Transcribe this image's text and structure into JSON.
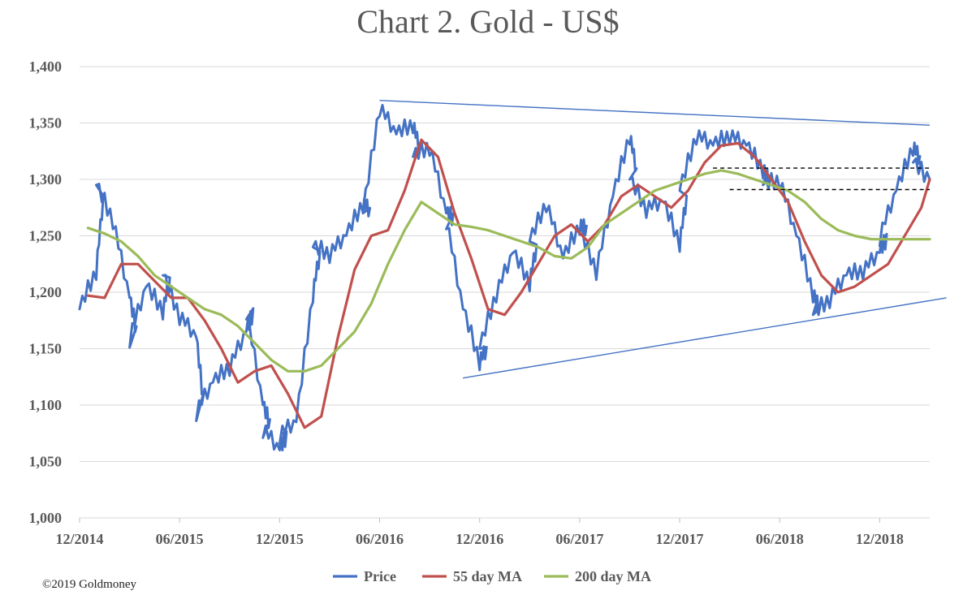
{
  "copyright": "©2019 Goldmoney",
  "chart_data": {
    "type": "line",
    "title": "Chart 2. Gold - US$",
    "xlabel": "",
    "ylabel": "",
    "ylim": [
      1000,
      1400
    ],
    "y_ticks": [
      1000,
      1050,
      1100,
      1150,
      1200,
      1250,
      1300,
      1350,
      1400
    ],
    "y_tick_labels": [
      "1,000",
      "1,050",
      "1,100",
      "1,150",
      "1,200",
      "1,250",
      "1,300",
      "1,350",
      "1,400"
    ],
    "x_range": [
      "2014-12",
      "2019-03"
    ],
    "x_ticks": [
      "2014-12",
      "2015-06",
      "2015-12",
      "2016-06",
      "2016-12",
      "2017-06",
      "2017-12",
      "2018-06",
      "2018-12"
    ],
    "x_tick_labels": [
      "12/2014",
      "06/2015",
      "12/2015",
      "06/2016",
      "12/2016",
      "06/2017",
      "12/2017",
      "06/2018",
      "12/2018"
    ],
    "grid": "horizontal",
    "legend_position": "bottom",
    "series": [
      {
        "name": "Price",
        "color": "#4472C4",
        "x": [
          "2014-12",
          "2015-01",
          "2015-01",
          "2015-02",
          "2015-03",
          "2015-03",
          "2015-04",
          "2015-05",
          "2015-05",
          "2015-06",
          "2015-07",
          "2015-07",
          "2015-08",
          "2015-09",
          "2015-10",
          "2015-10",
          "2015-11",
          "2015-11",
          "2015-12",
          "2015-12",
          "2016-01",
          "2016-02",
          "2016-02",
          "2016-03",
          "2016-04",
          "2016-05",
          "2016-05",
          "2016-06",
          "2016-07",
          "2016-08",
          "2016-08",
          "2016-09",
          "2016-10",
          "2016-10",
          "2016-11",
          "2016-12",
          "2016-12",
          "2017-01",
          "2017-02",
          "2017-03",
          "2017-03",
          "2017-04",
          "2017-05",
          "2017-06",
          "2017-06",
          "2017-07",
          "2017-08",
          "2017-09",
          "2017-09",
          "2017-10",
          "2017-11",
          "2017-12",
          "2017-12",
          "2018-01",
          "2018-02",
          "2018-03",
          "2018-04",
          "2018-05",
          "2018-05",
          "2018-06",
          "2018-07",
          "2018-08",
          "2018-08",
          "2018-09",
          "2018-10",
          "2018-11",
          "2018-12",
          "2018-12",
          "2019-01",
          "2019-02",
          "2019-02",
          "2019-03"
        ],
        "y": [
          1185,
          1220,
          1295,
          1265,
          1195,
          1160,
          1205,
          1185,
          1215,
          1180,
          1160,
          1095,
          1120,
          1135,
          1165,
          1185,
          1100,
          1080,
          1060,
          1075,
          1085,
          1200,
          1240,
          1235,
          1250,
          1280,
          1270,
          1365,
          1340,
          1350,
          1320,
          1330,
          1270,
          1265,
          1185,
          1140,
          1150,
          1200,
          1235,
          1210,
          1245,
          1280,
          1230,
          1260,
          1255,
          1220,
          1285,
          1340,
          1300,
          1275,
          1280,
          1245,
          1290,
          1340,
          1330,
          1340,
          1330,
          1310,
          1295,
          1300,
          1250,
          1200,
          1180,
          1195,
          1215,
          1220,
          1235,
          1250,
          1290,
          1330,
          1315,
          1300
        ]
      },
      {
        "name": "55 day MA",
        "color": "#C0504D",
        "x": [
          "2014-12",
          "2015-01",
          "2015-02",
          "2015-03",
          "2015-04",
          "2015-05",
          "2015-06",
          "2015-07",
          "2015-08",
          "2015-09",
          "2015-10",
          "2015-11",
          "2015-12",
          "2016-01",
          "2016-02",
          "2016-03",
          "2016-04",
          "2016-05",
          "2016-06",
          "2016-07",
          "2016-08",
          "2016-09",
          "2016-10",
          "2016-11",
          "2016-12",
          "2017-01",
          "2017-02",
          "2017-03",
          "2017-04",
          "2017-05",
          "2017-06",
          "2017-07",
          "2017-08",
          "2017-09",
          "2017-10",
          "2017-11",
          "2017-12",
          "2018-01",
          "2018-02",
          "2018-03",
          "2018-04",
          "2018-05",
          "2018-06",
          "2018-07",
          "2018-08",
          "2018-09",
          "2018-10",
          "2018-11",
          "2018-12",
          "2019-01",
          "2019-02",
          "2019-03"
        ],
        "y": [
          1197,
          1195,
          1225,
          1225,
          1210,
          1195,
          1195,
          1175,
          1150,
          1120,
          1130,
          1135,
          1110,
          1080,
          1090,
          1160,
          1220,
          1250,
          1255,
          1290,
          1335,
          1320,
          1270,
          1230,
          1185,
          1180,
          1200,
          1225,
          1250,
          1260,
          1245,
          1260,
          1285,
          1295,
          1285,
          1275,
          1290,
          1315,
          1330,
          1332,
          1320,
          1300,
          1280,
          1245,
          1215,
          1200,
          1205,
          1215,
          1225,
          1250,
          1275,
          1300
        ]
      },
      {
        "name": "200 day MA",
        "color": "#9BBB59",
        "x": [
          "2014-12",
          "2015-01",
          "2015-02",
          "2015-03",
          "2015-04",
          "2015-05",
          "2015-06",
          "2015-07",
          "2015-08",
          "2015-09",
          "2015-10",
          "2015-11",
          "2015-12",
          "2016-01",
          "2016-02",
          "2016-03",
          "2016-04",
          "2016-05",
          "2016-06",
          "2016-07",
          "2016-08",
          "2016-09",
          "2016-10",
          "2016-11",
          "2016-12",
          "2017-01",
          "2017-02",
          "2017-03",
          "2017-04",
          "2017-05",
          "2017-06",
          "2017-07",
          "2017-08",
          "2017-09",
          "2017-10",
          "2017-11",
          "2017-12",
          "2018-01",
          "2018-02",
          "2018-03",
          "2018-04",
          "2018-05",
          "2018-06",
          "2018-07",
          "2018-08",
          "2018-09",
          "2018-10",
          "2018-11",
          "2018-12",
          "2019-01",
          "2019-02",
          "2019-03"
        ],
        "y": [
          1257,
          1252,
          1245,
          1232,
          1215,
          1205,
          1195,
          1185,
          1180,
          1170,
          1155,
          1140,
          1130,
          1130,
          1135,
          1150,
          1165,
          1190,
          1225,
          1255,
          1280,
          1270,
          1260,
          1258,
          1255,
          1250,
          1245,
          1240,
          1232,
          1230,
          1240,
          1260,
          1270,
          1280,
          1290,
          1295,
          1300,
          1305,
          1308,
          1305,
          1300,
          1295,
          1290,
          1280,
          1265,
          1255,
          1250,
          1247,
          1247,
          1247,
          1247,
          1247
        ]
      }
    ],
    "annotations": [
      {
        "type": "trendline",
        "style": "solid",
        "color": "#4472C4",
        "from": {
          "x": "2016-06",
          "y": 1370
        },
        "to": {
          "x": "2019-03",
          "y": 1348
        }
      },
      {
        "type": "trendline",
        "style": "solid",
        "color": "#4472C4",
        "from": {
          "x": "2016-11",
          "y": 1124
        },
        "to": {
          "x": "2019-04",
          "y": 1195
        }
      },
      {
        "type": "hline",
        "style": "dashed",
        "color": "#000000",
        "y": 1310,
        "from": "2018-02",
        "to": "2019-03"
      },
      {
        "type": "hline",
        "style": "dashed",
        "color": "#000000",
        "y": 1291,
        "from": "2018-03",
        "to": "2019-03"
      }
    ]
  }
}
